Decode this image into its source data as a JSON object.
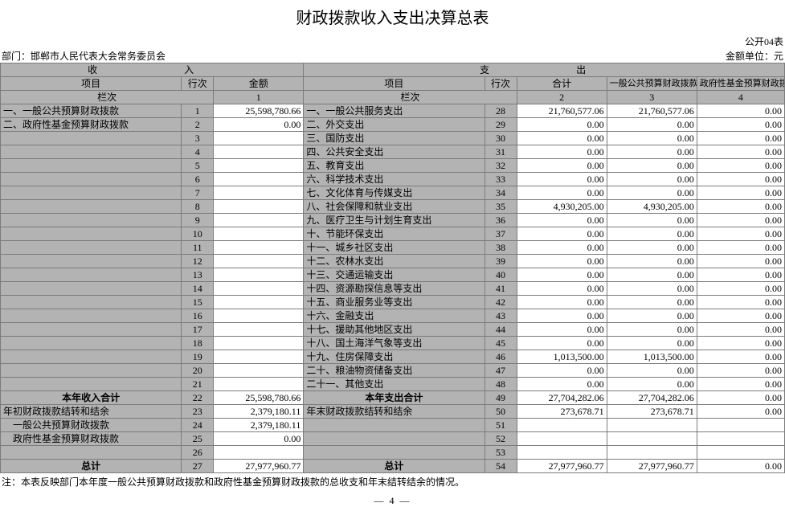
{
  "title": "财政拨款收入支出决算总表",
  "table_no": "公开04表",
  "dept_label": "部门：",
  "dept_name": "邯郸市人民代表大会常务委员会",
  "unit_label": "金额单位：元",
  "section_in": "收　　入",
  "section_out": "支　　出",
  "col_item": "项目",
  "col_line": "行次",
  "col_amount": "金额",
  "col_total": "合计",
  "col_gpf": "一般公共预算财政拨款",
  "col_gov_fund": "政府性基金预算财政拨",
  "col_lz": "栏次",
  "col_n1": "1",
  "col_n2": "2",
  "col_n3": "3",
  "col_n4": "4",
  "note": "注：本表反映部门本年度一般公共预算财政拨款和政府性基金预算财政拨款的总收支和年末结转结余的情况。",
  "page_num": "— 4 —",
  "rows": [
    {
      "inItem": "一、一般公共预算财政拨款",
      "inLine": "1",
      "inAmt": "25,598,780.66",
      "outItem": "一、一般公共服务支出",
      "outLine": "28",
      "tot": "21,760,577.06",
      "gpf": "21,760,577.06",
      "gf": "0.00"
    },
    {
      "inItem": "二、政府性基金预算财政拨款",
      "inLine": "2",
      "inAmt": "0.00",
      "outItem": "二、外交支出",
      "outLine": "29",
      "tot": "0.00",
      "gpf": "0.00",
      "gf": "0.00"
    },
    {
      "inItem": "",
      "inLine": "3",
      "inAmt": "",
      "outItem": "三、国防支出",
      "outLine": "30",
      "tot": "0.00",
      "gpf": "0.00",
      "gf": "0.00"
    },
    {
      "inItem": "",
      "inLine": "4",
      "inAmt": "",
      "outItem": "四、公共安全支出",
      "outLine": "31",
      "tot": "0.00",
      "gpf": "0.00",
      "gf": "0.00"
    },
    {
      "inItem": "",
      "inLine": "5",
      "inAmt": "",
      "outItem": "五、教育支出",
      "outLine": "32",
      "tot": "0.00",
      "gpf": "0.00",
      "gf": "0.00"
    },
    {
      "inItem": "",
      "inLine": "6",
      "inAmt": "",
      "outItem": "六、科学技术支出",
      "outLine": "33",
      "tot": "0.00",
      "gpf": "0.00",
      "gf": "0.00"
    },
    {
      "inItem": "",
      "inLine": "7",
      "inAmt": "",
      "outItem": "七、文化体育与传媒支出",
      "outLine": "34",
      "tot": "0.00",
      "gpf": "0.00",
      "gf": "0.00"
    },
    {
      "inItem": "",
      "inLine": "8",
      "inAmt": "",
      "outItem": "八、社会保障和就业支出",
      "outLine": "35",
      "tot": "4,930,205.00",
      "gpf": "4,930,205.00",
      "gf": "0.00"
    },
    {
      "inItem": "",
      "inLine": "9",
      "inAmt": "",
      "outItem": "九、医疗卫生与计划生育支出",
      "outLine": "36",
      "tot": "0.00",
      "gpf": "0.00",
      "gf": "0.00"
    },
    {
      "inItem": "",
      "inLine": "10",
      "inAmt": "",
      "outItem": "十、节能环保支出",
      "outLine": "37",
      "tot": "0.00",
      "gpf": "0.00",
      "gf": "0.00"
    },
    {
      "inItem": "",
      "inLine": "11",
      "inAmt": "",
      "outItem": "十一、城乡社区支出",
      "outLine": "38",
      "tot": "0.00",
      "gpf": "0.00",
      "gf": "0.00"
    },
    {
      "inItem": "",
      "inLine": "12",
      "inAmt": "",
      "outItem": "十二、农林水支出",
      "outLine": "39",
      "tot": "0.00",
      "gpf": "0.00",
      "gf": "0.00"
    },
    {
      "inItem": "",
      "inLine": "13",
      "inAmt": "",
      "outItem": "十三、交通运输支出",
      "outLine": "40",
      "tot": "0.00",
      "gpf": "0.00",
      "gf": "0.00"
    },
    {
      "inItem": "",
      "inLine": "14",
      "inAmt": "",
      "outItem": "十四、资源勘探信息等支出",
      "outLine": "41",
      "tot": "0.00",
      "gpf": "0.00",
      "gf": "0.00"
    },
    {
      "inItem": "",
      "inLine": "15",
      "inAmt": "",
      "outItem": "十五、商业服务业等支出",
      "outLine": "42",
      "tot": "0.00",
      "gpf": "0.00",
      "gf": "0.00"
    },
    {
      "inItem": "",
      "inLine": "16",
      "inAmt": "",
      "outItem": "十六、金融支出",
      "outLine": "43",
      "tot": "0.00",
      "gpf": "0.00",
      "gf": "0.00"
    },
    {
      "inItem": "",
      "inLine": "17",
      "inAmt": "",
      "outItem": "十七、援助其他地区支出",
      "outLine": "44",
      "tot": "0.00",
      "gpf": "0.00",
      "gf": "0.00"
    },
    {
      "inItem": "",
      "inLine": "18",
      "inAmt": "",
      "outItem": "十八、国土海洋气象等支出",
      "outLine": "45",
      "tot": "0.00",
      "gpf": "0.00",
      "gf": "0.00"
    },
    {
      "inItem": "",
      "inLine": "19",
      "inAmt": "",
      "outItem": "十九、住房保障支出",
      "outLine": "46",
      "tot": "1,013,500.00",
      "gpf": "1,013,500.00",
      "gf": "0.00"
    },
    {
      "inItem": "",
      "inLine": "20",
      "inAmt": "",
      "outItem": "二十、粮油物资储备支出",
      "outLine": "47",
      "tot": "0.00",
      "gpf": "0.00",
      "gf": "0.00"
    },
    {
      "inItem": "",
      "inLine": "21",
      "inAmt": "",
      "outItem": "二十一、其他支出",
      "outLine": "48",
      "tot": "0.00",
      "gpf": "0.00",
      "gf": "0.00"
    }
  ],
  "sum_rows": [
    {
      "inItem": "本年收入合计",
      "inLine": "22",
      "inAmt": "25,598,780.66",
      "outItem": "本年支出合计",
      "outLine": "49",
      "tot": "27,704,282.06",
      "gpf": "27,704,282.06",
      "gf": "0.00",
      "boldIn": true,
      "boldOut": true
    },
    {
      "inItem": "年初财政拨款结转和结余",
      "inLine": "23",
      "inAmt": "2,379,180.11",
      "outItem": "年末财政拨款结转和结余",
      "outLine": "50",
      "tot": "273,678.71",
      "gpf": "273,678.71",
      "gf": "0.00"
    },
    {
      "inItem": "　一般公共预算财政拨款",
      "inLine": "24",
      "inAmt": "2,379,180.11",
      "outItem": "",
      "outLine": "51",
      "tot": "",
      "gpf": "",
      "gf": ""
    },
    {
      "inItem": "　政府性基金预算财政拨款",
      "inLine": "25",
      "inAmt": "0.00",
      "outItem": "",
      "outLine": "52",
      "tot": "",
      "gpf": "",
      "gf": ""
    },
    {
      "inItem": "",
      "inLine": "26",
      "inAmt": "",
      "outItem": "",
      "outLine": "53",
      "tot": "",
      "gpf": "",
      "gf": ""
    },
    {
      "inItem": "总计",
      "inLine": "27",
      "inAmt": "27,977,960.77",
      "outItem": "总计",
      "outLine": "54",
      "tot": "27,977,960.77",
      "gpf": "27,977,960.77",
      "gf": "0.00",
      "boldIn": true,
      "boldOut": true
    }
  ],
  "widths": {
    "c1": 225,
    "c2": 40,
    "c3": 110,
    "c4": 225,
    "c5": 40,
    "c6": 110,
    "c7": 110,
    "c8": 110
  }
}
